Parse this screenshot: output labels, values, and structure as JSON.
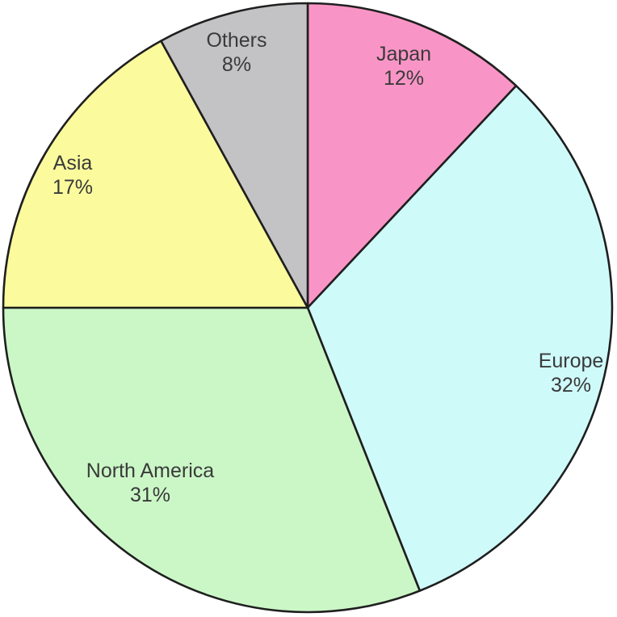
{
  "chart_data": {
    "type": "pie",
    "title": "",
    "legend": "none",
    "direction": "clockwise",
    "start_angle_deg": 0,
    "unit": "%",
    "background": "#ffffff",
    "outline_color": "#1f1f1f",
    "outline_width": 2.6,
    "label_color": "#3a3a3a",
    "slices": [
      {
        "label": "Japan",
        "value": 12,
        "percent_text": "12%",
        "color": "#F995C6",
        "label_angle_deg": 21.6,
        "label_radius": 0.86
      },
      {
        "label": "Europe",
        "value": 32,
        "percent_text": "32%",
        "color": "#CFFAFA",
        "label_angle_deg": 103.6,
        "label_radius": 0.89
      },
      {
        "label": "North America",
        "value": 31,
        "percent_text": "31%",
        "color": "#CBF7C7",
        "label_angle_deg": 222.3,
        "label_radius": 0.77
      },
      {
        "label": "Asia",
        "value": 17,
        "percent_text": "17%",
        "color": "#FBFB9D",
        "label_angle_deg": 299.7,
        "label_radius": 0.89
      },
      {
        "label": "Others",
        "value": 8,
        "percent_text": "8%",
        "color": "#C3C2C4",
        "label_angle_deg": 344.5,
        "label_radius": 0.875
      }
    ]
  }
}
